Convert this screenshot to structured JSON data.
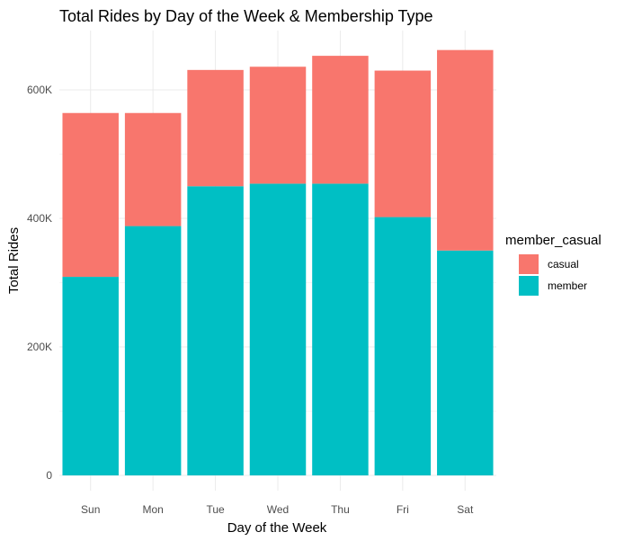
{
  "chart_data": {
    "type": "bar",
    "stacked": true,
    "title": "Total Rides by Day of the Week & Membership Type",
    "xlabel": "Day of the Week",
    "ylabel": "Total Rides",
    "categories": [
      "Sun",
      "Mon",
      "Tue",
      "Wed",
      "Thu",
      "Fri",
      "Sat"
    ],
    "series": [
      {
        "name": "member",
        "color": "#00BFC4",
        "values": [
          309000,
          388000,
          450000,
          454000,
          454000,
          402000,
          350000
        ]
      },
      {
        "name": "casual",
        "color": "#F8766D",
        "values": [
          255000,
          176000,
          181000,
          182000,
          199000,
          228000,
          312000
        ]
      }
    ],
    "ylim": [
      0,
      680000
    ],
    "yticks": [
      0,
      200000,
      400000,
      600000
    ],
    "ytick_labels": [
      "0",
      "200K",
      "400K",
      "600K"
    ],
    "grid": true,
    "legend": {
      "title": "member_casual",
      "position": "right",
      "entries": [
        {
          "label": "casual",
          "color": "#F8766D"
        },
        {
          "label": "member",
          "color": "#00BFC4"
        }
      ]
    }
  }
}
